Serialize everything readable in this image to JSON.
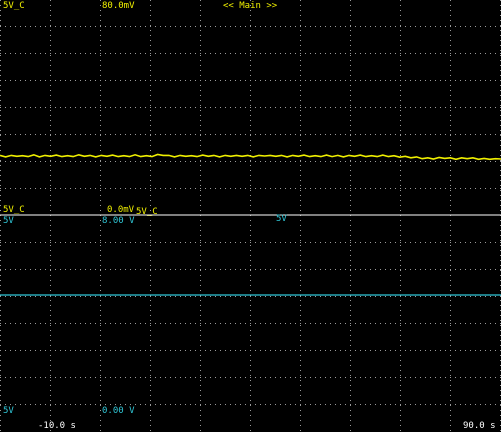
{
  "top_pane": {
    "channel_label": "5V_C",
    "scale_label": "80.0mV",
    "view_label": "<< Main >>",
    "bottom_channel_label": "5V_C",
    "offset_label": "0.0mV",
    "offset_suffix": "5V_C",
    "trace_color": "#f0f000",
    "trace_samples": [
      0.52,
      0.521,
      0.52,
      0.519,
      0.521,
      0.52,
      0.518,
      0.521,
      0.52,
      0.519,
      0.519,
      0.52,
      0.521,
      0.52,
      0.518,
      0.519,
      0.52,
      0.521,
      0.52,
      0.519,
      0.519,
      0.52,
      0.521,
      0.52,
      0.518,
      0.52,
      0.521,
      0.52,
      0.517,
      0.516,
      0.52,
      0.521,
      0.52,
      0.519,
      0.521,
      0.52,
      0.519,
      0.519,
      0.52,
      0.521,
      0.52,
      0.519,
      0.52,
      0.519,
      0.52,
      0.521,
      0.52,
      0.518,
      0.52,
      0.519,
      0.52,
      0.521,
      0.52,
      0.519,
      0.519,
      0.52,
      0.521,
      0.52,
      0.519,
      0.52,
      0.52,
      0.521,
      0.52,
      0.519,
      0.519,
      0.52,
      0.521,
      0.52,
      0.519,
      0.52,
      0.521,
      0.522,
      0.523,
      0.524,
      0.525,
      0.527,
      0.528,
      0.528,
      0.527,
      0.526,
      0.528,
      0.529,
      0.528,
      0.527,
      0.528,
      0.529,
      0.53,
      0.529,
      0.531,
      0.528
    ]
  },
  "bottom_pane": {
    "channel_label_top": "5V",
    "scale_label": "8.00 V",
    "marker_label": "5V",
    "channel_label_bottom": "5V",
    "offset_label": "0.00 V",
    "trace_color": "#30c8d8",
    "trace_level": 0.5
  },
  "time_axis": {
    "start_label": "-10.0 s",
    "end_label": "90.0 s"
  }
}
